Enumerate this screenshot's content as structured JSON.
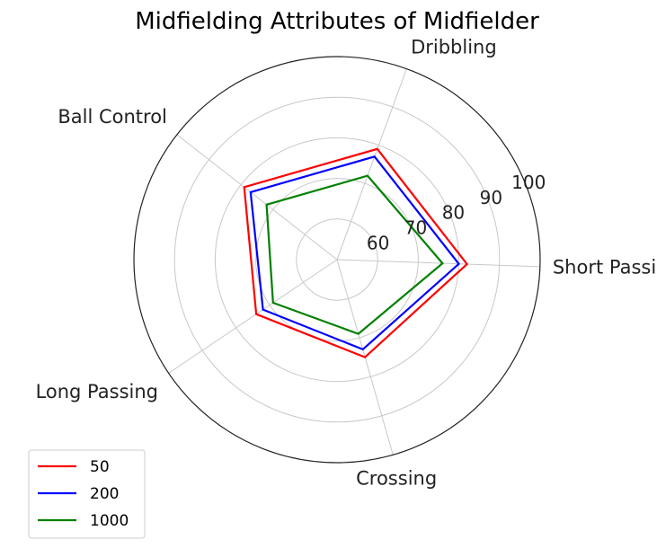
{
  "chart_data": {
    "type": "radar",
    "title": "Midfielding Attributes of Midfielder",
    "axes": [
      "Short Passing",
      "Dribbling",
      "Ball Control",
      "Long Passing",
      "Crossing"
    ],
    "radial_ticks": [
      "60",
      "70",
      "80",
      "90",
      "100"
    ],
    "radial_tick_values": [
      60,
      70,
      80,
      90,
      100
    ],
    "rlim": [
      50,
      100
    ],
    "grid": true,
    "legend_position": "bottom-left",
    "series": [
      {
        "name": "50",
        "color": "#ff0000",
        "values": [
          82,
          79,
          79,
          74,
          75
        ]
      },
      {
        "name": "200",
        "color": "#0000ff",
        "values": [
          80,
          77,
          77,
          72,
          73
        ]
      },
      {
        "name": "1000",
        "color": "#008000",
        "values": [
          76,
          72,
          72,
          69,
          69
        ]
      }
    ]
  }
}
